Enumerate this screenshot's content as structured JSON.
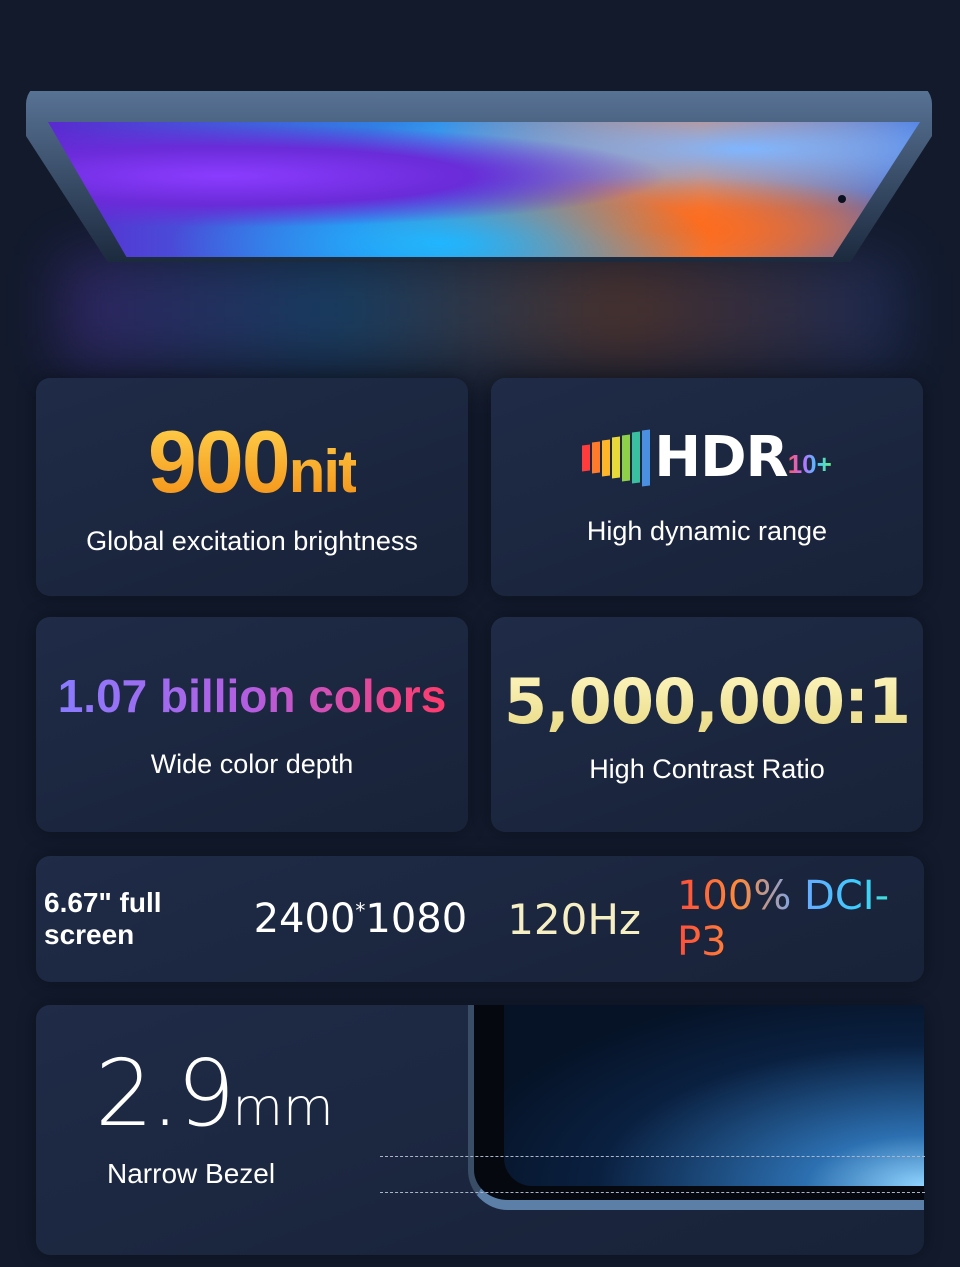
{
  "brightness": {
    "value": "900",
    "unit": "nit",
    "label": "Global excitation brightness"
  },
  "hdr": {
    "logo_text": "HDR",
    "logo_suffix": "10+",
    "label": "High dynamic range"
  },
  "color_depth": {
    "value": "1.07 billion colors",
    "label": "Wide color depth"
  },
  "contrast": {
    "value": "5,000,000:1",
    "label": "High Contrast Ratio"
  },
  "specs": {
    "screen": "6.67\" full screen",
    "res_w": "2400",
    "res_sep": "*",
    "res_h": "1080",
    "refresh": "120Hz",
    "gamut": "100% DCI-P3"
  },
  "bezel": {
    "value": "2.9",
    "unit": "mm",
    "label": "Narrow Bezel"
  },
  "colors": {
    "background": "#121a2c",
    "card": "#1f2b47",
    "brightness_gold": "#f39016",
    "hdr_bars": [
      "#ff3b3b",
      "#ff7a2a",
      "#ffb52a",
      "#e8d83a",
      "#8fd04a",
      "#3ac0a0",
      "#4a8fe0"
    ]
  }
}
